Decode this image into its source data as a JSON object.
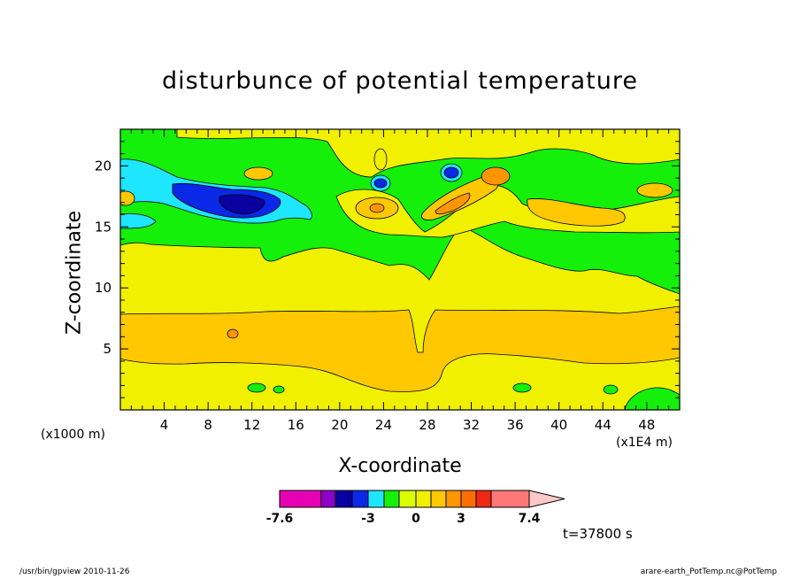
{
  "chart_data": {
    "type": "heatmap",
    "title": "disturbunce of potential temperature",
    "xlabel": "X-coordinate",
    "ylabel": "Z-coordinate",
    "x_unit_left": "(x1000 m)",
    "x_unit_right": "(x1E4 m)",
    "time_label": "t=37800 s",
    "xlim": [
      0,
      51
    ],
    "ylim": [
      0,
      23
    ],
    "x_ticks": [
      4,
      8,
      12,
      16,
      20,
      24,
      28,
      32,
      36,
      40,
      44,
      48
    ],
    "y_ticks": [
      5,
      10,
      15,
      20
    ],
    "colorbar": {
      "levels": [
        -7.6,
        -6.6,
        -5.6,
        -4.6,
        -3,
        -2,
        -1,
        0,
        1,
        2,
        3,
        4,
        5,
        7.4
      ],
      "colors": [
        "#e600b4",
        "#8c00c8",
        "#0a00a0",
        "#0a28e6",
        "#1ee6ff",
        "#14f00a",
        "#dcff00",
        "#f0f000",
        "#ffc800",
        "#ff9600",
        "#ff6e00",
        "#f02814",
        "#ff7878"
      ],
      "extend_color": "#ffc8c8",
      "tick_labels": [
        {
          "value": -7.6,
          "label": "-7.6"
        },
        {
          "value": -3,
          "label": "-3"
        },
        {
          "value": 0,
          "label": "0"
        },
        {
          "value": 3,
          "label": "3"
        },
        {
          "value": 7.4,
          "label": "7.4"
        }
      ]
    },
    "field_regions": {
      "background": "#f0f000",
      "band_green_upper": "#14f00a",
      "band_orange_lower": "#ffc800",
      "band_cyan": "#1ee6ff",
      "band_blue": "#0a28e6",
      "band_navy": "#0a00a0"
    }
  },
  "footer": {
    "left": "/usr/bin/gpview   2010-11-26",
    "right": "arare-earth_PotTemp.nc@PotTemp"
  }
}
